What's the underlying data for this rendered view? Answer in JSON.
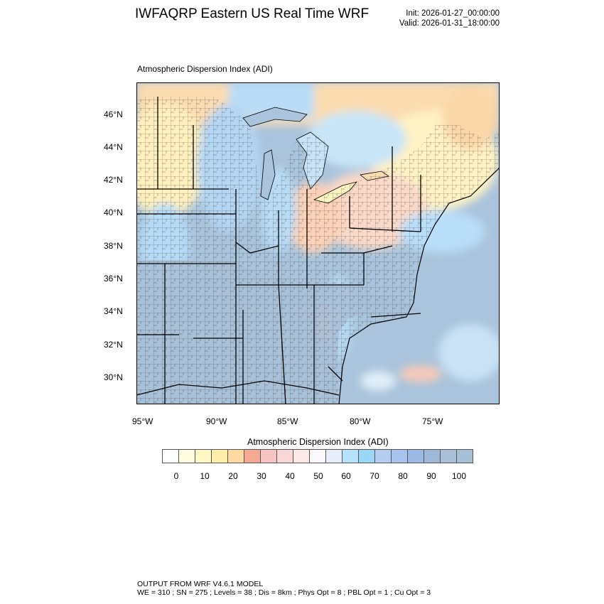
{
  "title": "IWFAQRP Eastern US Real Time WRF",
  "init_label": "Init: 2026-01-27_00:00:00",
  "valid_label": "Valid: 2026-01-31_18:00:00",
  "panel_title": "Atmospheric Dispersion Index   (ADI)",
  "latitude_ticks": [
    "46°N",
    "44°N",
    "42°N",
    "40°N",
    "38°N",
    "36°N",
    "34°N",
    "32°N",
    "30°N"
  ],
  "longitude_ticks": [
    "95°W",
    "90°W",
    "85°W",
    "80°W",
    "75°W"
  ],
  "colorbar": {
    "title": "Atmospheric Dispersion Index  (ADI)",
    "labels": [
      "0",
      "10",
      "20",
      "30",
      "40",
      "50",
      "60",
      "70",
      "80",
      "90",
      "100"
    ],
    "colors": [
      "#ffffff",
      "#fffce0",
      "#fff8c4",
      "#ffeeaa",
      "#ffd9a0",
      "#f5a993",
      "#f8c3c3",
      "#fad7d7",
      "#fde8e8",
      "#fbf8fb",
      "#e6eefa",
      "#b7e2fb",
      "#9ad6f8",
      "#b4cdf0",
      "#a6c4ef",
      "#9cb9e6",
      "#9db8d8",
      "#aac0d8",
      "#a6c0d8"
    ]
  },
  "colors": {
    "ocean": "#a9c4dc",
    "land_high_adi": "#a9c1d9",
    "mid_adi": "#b8ddf6",
    "low_adi_yellow": "#fff3c0",
    "low_adi_orange": "#fbd8a8",
    "salmon": "#f6b9a8",
    "lakes": "#a9c4dc"
  },
  "footer": {
    "line1": "OUTPUT FROM WRF V4.6.1 MODEL",
    "line2": "WE = 310 ; SN = 275 ; Levels = 38 ; Dis = 8km ; Phys Opt = 8 ; PBL Opt = 1 ; Cu Opt = 3"
  }
}
